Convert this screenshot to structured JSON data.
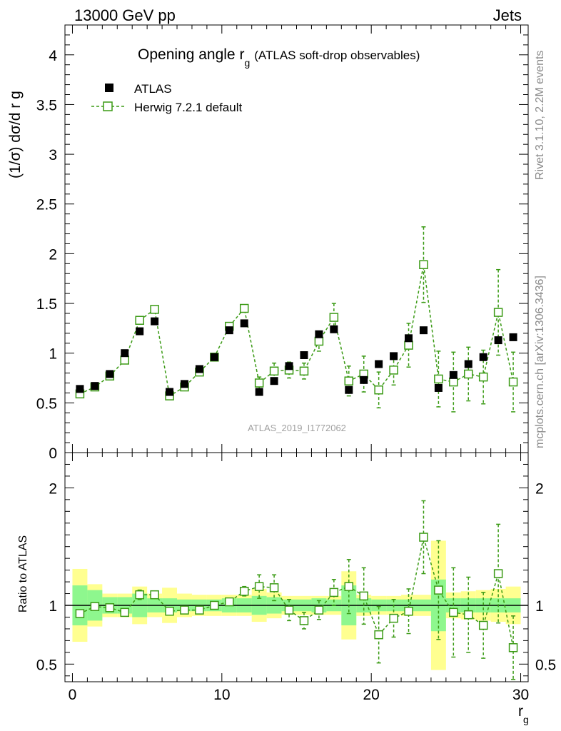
{
  "header": {
    "left": "13000 GeV pp",
    "right": "Jets"
  },
  "side_labels": {
    "rivet": "Rivet 3.1.10,  2.2M events",
    "mcplots": "mcplots.cern.ch [arXiv:1306.3436]"
  },
  "chart_data": {
    "type": "scatter",
    "title": {
      "main": "Opening angle r",
      "sub": "g",
      "tail": "(ATLAS soft-drop observables)"
    },
    "analysis_label": "ATLAS_2019_I1772062",
    "xlabel": {
      "main": "r",
      "sub": "g"
    },
    "ylabel": "(1/σ) dσ/d r g",
    "ratio_ylabel": "Ratio to ATLAS",
    "xlim": [
      -0.5,
      30.5
    ],
    "ylim": [
      0,
      4.3
    ],
    "ratio_ylim": [
      0.35,
      2.3
    ],
    "x_ticks": [
      0,
      10,
      20,
      30
    ],
    "y_ticks": [
      0,
      0.5,
      1,
      1.5,
      2,
      2.5,
      3,
      3.5,
      4
    ],
    "y_tick_labels": [
      "0",
      "0.5",
      "1",
      "1.5",
      "2",
      "2.5",
      "3",
      "3.5",
      "4"
    ],
    "ratio_ticks": [
      0.5,
      1,
      2
    ],
    "ratio_tick_labels": [
      "0.5",
      "1",
      "2"
    ],
    "legend": {
      "position": "top-left",
      "entries": [
        "ATLAS",
        "Herwig 7.2.1 default"
      ]
    },
    "colors": {
      "data": "#000000",
      "mc": "#3a9a14",
      "band_inner": "#8ef78e",
      "band_outer": "#ffff90"
    },
    "x": [
      0.5,
      1.5,
      2.5,
      3.5,
      4.5,
      5.5,
      6.5,
      7.5,
      8.5,
      9.5,
      10.5,
      11.5,
      12.5,
      13.5,
      14.5,
      15.5,
      16.5,
      17.5,
      18.5,
      19.5,
      20.5,
      21.5,
      22.5,
      23.5,
      24.5,
      25.5,
      26.5,
      27.5,
      28.5,
      29.5
    ],
    "series": [
      {
        "name": "ATLAS",
        "values": [
          0.64,
          0.67,
          0.79,
          1.0,
          1.22,
          1.32,
          0.61,
          0.69,
          0.84,
          0.96,
          1.23,
          1.3,
          0.61,
          0.72,
          0.87,
          0.98,
          1.19,
          1.24,
          0.63,
          0.73,
          0.89,
          0.97,
          1.15,
          1.23,
          0.65,
          0.78,
          0.89,
          0.96,
          1.13,
          1.16
        ],
        "band_inner": [
          0.17,
          0.13,
          0.07,
          0.07,
          0.1,
          0.06,
          0.06,
          0.05,
          0.05,
          0.05,
          0.06,
          0.06,
          0.08,
          0.07,
          0.05,
          0.05,
          0.06,
          0.05,
          0.17,
          0.06,
          0.05,
          0.05,
          0.05,
          0.05,
          0.22,
          0.06,
          0.06,
          0.06,
          0.06,
          0.06
        ],
        "band_outer": [
          0.31,
          0.18,
          0.1,
          0.1,
          0.16,
          0.1,
          0.15,
          0.1,
          0.09,
          0.09,
          0.09,
          0.09,
          0.14,
          0.11,
          0.08,
          0.08,
          0.08,
          0.08,
          0.29,
          0.09,
          0.08,
          0.08,
          0.09,
          0.09,
          0.55,
          0.11,
          0.12,
          0.13,
          0.14,
          0.16
        ]
      },
      {
        "name": "Herwig 7.2.1 default",
        "values": [
          0.59,
          0.66,
          0.77,
          0.93,
          1.33,
          1.44,
          0.57,
          0.66,
          0.81,
          0.96,
          1.27,
          1.45,
          0.7,
          0.82,
          0.83,
          0.82,
          1.12,
          1.36,
          0.72,
          0.79,
          0.63,
          0.83,
          1.08,
          1.89,
          0.74,
          0.71,
          0.79,
          0.76,
          1.41,
          0.71
        ],
        "errors": [
          0.02,
          0.02,
          0.02,
          0.02,
          0.02,
          0.02,
          0.02,
          0.02,
          0.02,
          0.02,
          0.02,
          0.03,
          0.06,
          0.08,
          0.08,
          0.08,
          0.1,
          0.14,
          0.15,
          0.18,
          0.18,
          0.15,
          0.22,
          0.38,
          0.28,
          0.3,
          0.27,
          0.27,
          0.43,
          0.3
        ],
        "ratio": [
          0.93,
          0.99,
          0.98,
          0.94,
          1.09,
          1.09,
          0.95,
          0.96,
          0.96,
          1.0,
          1.03,
          1.12,
          1.16,
          1.15,
          0.96,
          0.87,
          0.96,
          1.11,
          1.16,
          1.08,
          0.75,
          0.89,
          0.95,
          1.58,
          1.13,
          0.94,
          0.92,
          0.83,
          1.27,
          0.64
        ],
        "ratio_errors": [
          0.03,
          0.03,
          0.03,
          0.03,
          0.04,
          0.03,
          0.03,
          0.03,
          0.03,
          0.03,
          0.03,
          0.04,
          0.1,
          0.11,
          0.09,
          0.07,
          0.08,
          0.11,
          0.23,
          0.24,
          0.24,
          0.16,
          0.19,
          0.31,
          0.42,
          0.38,
          0.32,
          0.28,
          0.42,
          0.27
        ]
      }
    ]
  }
}
